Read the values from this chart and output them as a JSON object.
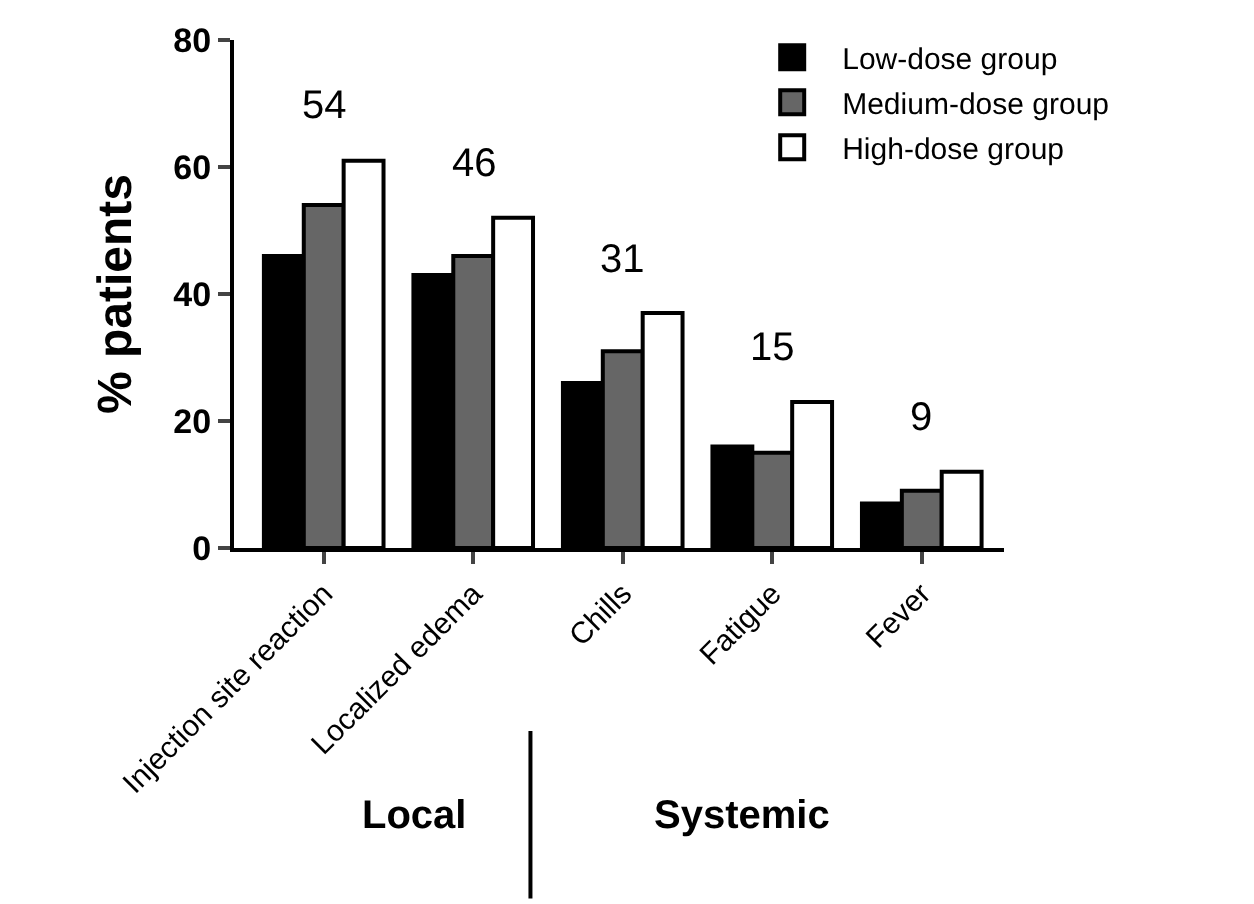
{
  "chart_data": {
    "type": "bar",
    "ylabel": "% patients",
    "categories": [
      "Injection site reaction",
      "Localized edema",
      "Chills",
      "Fatigue",
      "Fever"
    ],
    "series": [
      {
        "name": "Low-dose group",
        "color": "#000000",
        "values": [
          46,
          43,
          26,
          16,
          7
        ]
      },
      {
        "name": "Medium-dose group",
        "color": "#666666",
        "values": [
          54,
          46,
          31,
          15,
          9
        ],
        "value_labels": [
          "54",
          "46",
          "31",
          "15",
          "9"
        ]
      },
      {
        "name": "High-dose group",
        "color": "#ffffff",
        "values": [
          61,
          52,
          37,
          23,
          12
        ]
      }
    ],
    "ylim": [
      0,
      80
    ],
    "yticks": [
      0,
      20,
      40,
      60,
      80
    ],
    "legend": "top right",
    "annotations": [
      "Local",
      "Systemic"
    ]
  }
}
